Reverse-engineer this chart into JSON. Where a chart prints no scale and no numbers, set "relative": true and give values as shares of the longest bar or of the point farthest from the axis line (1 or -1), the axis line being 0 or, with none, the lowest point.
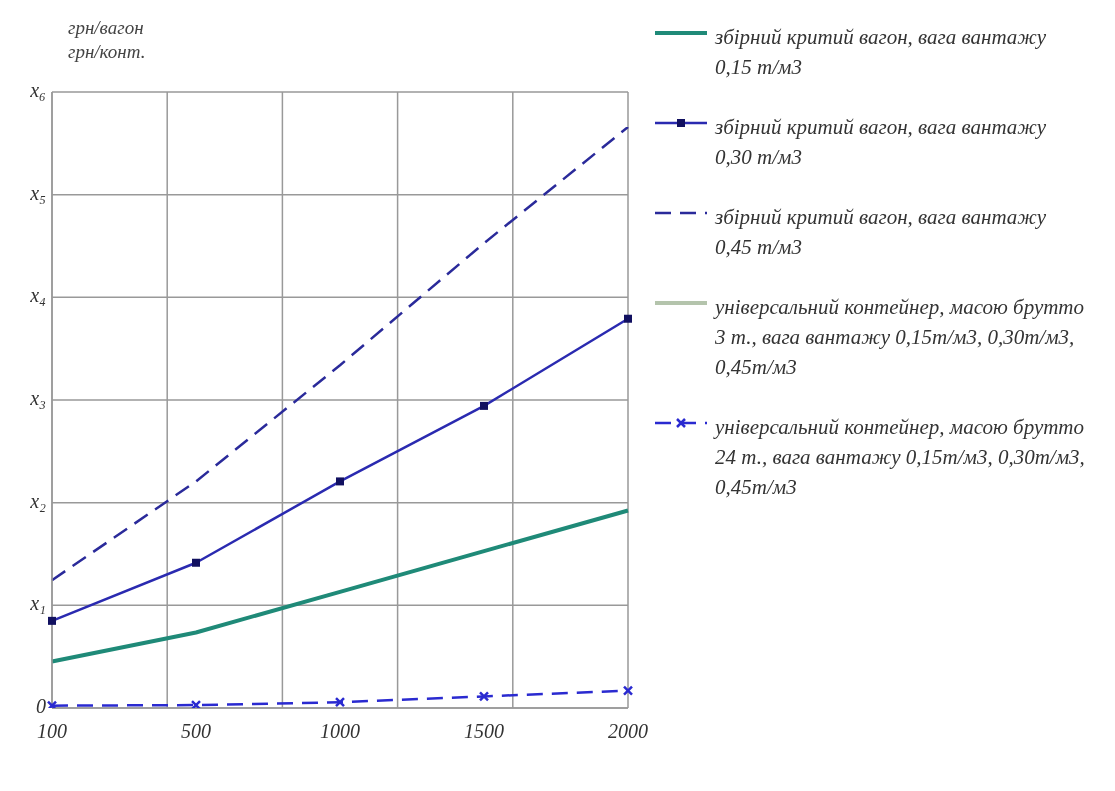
{
  "chart_data": {
    "type": "line",
    "ylabel": "грн/вагон грн/конт.",
    "categories": [
      "100",
      "500",
      "1000",
      "1500",
      "2000"
    ],
    "relative": true,
    "annotations": [
      "0",
      "x₁",
      "x₂",
      "x₃",
      "x₄",
      "x₅",
      "x₆"
    ],
    "grid": true,
    "legend": "right",
    "series": [
      {
        "name": "збірний критий вагон, вага вантажу 0,15 т/м3",
        "color": "#1f8a78",
        "values": [
          0.08,
          0.13,
          0.2,
          0.27,
          0.34
        ],
        "marker": "none",
        "line_style": "solid"
      },
      {
        "name": "збірний критий вагон, вага вантажу 0,30 т/м3",
        "color": "#2a2ab0",
        "values": [
          0.15,
          0.25,
          0.39,
          0.52,
          0.67
        ],
        "marker": "square",
        "line_style": "solid"
      },
      {
        "name": "збірний критий вагон, вага вантажу 0,45 т/м3",
        "color": "#2a2a9a",
        "values": [
          0.22,
          0.39,
          0.59,
          0.8,
          1
        ],
        "marker": "none",
        "line_style": "dashed"
      },
      {
        "name": "універсальний контейнер, масою брутто 3 т., вага вантажу 0,15т/м3, 0,30т/м3, 0,45т/м3",
        "color": "#b4c4ac",
        "values": [
          null,
          null,
          null,
          null,
          null
        ],
        "marker": "none",
        "line_style": "solid"
      },
      {
        "name": "універсальний контейнер, масою брутто 24 т., вага вантажу 0,15т/м3, 0,30т/м3, 0,45т/м3",
        "color": "#2a2ad0",
        "values": [
          0.004,
          0.005,
          0.01,
          0.02,
          0.03
        ],
        "marker": "cross",
        "line_style": "dashed"
      }
    ]
  }
}
